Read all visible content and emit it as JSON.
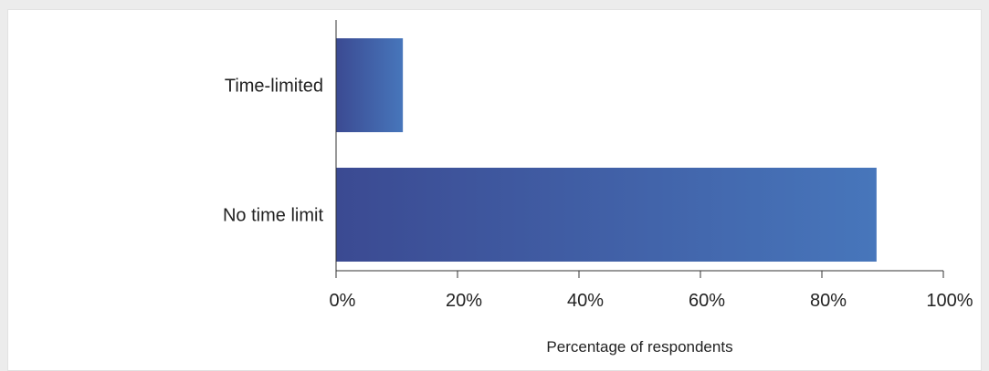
{
  "chart_data": {
    "type": "bar",
    "orientation": "horizontal",
    "categories": [
      "Time-limited",
      "No time limit"
    ],
    "values": [
      11,
      89
    ],
    "xlabel": "Percentage of respondents",
    "ylabel": "",
    "xlim": [
      0,
      100
    ],
    "ticks": [
      0,
      20,
      40,
      60,
      80,
      100
    ],
    "tick_labels": [
      "0%",
      "20%",
      "40%",
      "60%",
      "80%",
      "100%"
    ],
    "grid": false,
    "legend": "none",
    "bar_gradient": [
      "#3b4a92",
      "#4776bb"
    ]
  }
}
